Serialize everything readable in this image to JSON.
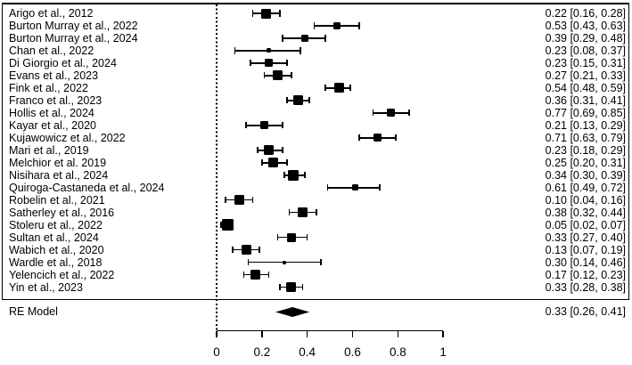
{
  "colors": {
    "ink": "#000000",
    "background": "#ffffff"
  },
  "chart_data": {
    "type": "forest",
    "title": "",
    "xlabel": "",
    "x_axis": {
      "min": 0,
      "max": 1,
      "ticks": [
        0,
        0.2,
        0.4,
        0.6,
        0.8,
        1
      ],
      "tick_labels": [
        "0",
        "0.2",
        "0.4",
        "0.6",
        "0.8",
        "1"
      ]
    },
    "reference_line": 0,
    "studies": [
      {
        "label": "Arigo et al., 2012",
        "estimate": 0.22,
        "ci_lower": 0.16,
        "ci_upper": 0.28,
        "value_text": "0.22 [0.16, 0.28]"
      },
      {
        "label": "Burton Murray et al., 2022",
        "estimate": 0.53,
        "ci_lower": 0.43,
        "ci_upper": 0.63,
        "value_text": "0.53 [0.43, 0.63]"
      },
      {
        "label": "Burton Murray et al., 2024",
        "estimate": 0.39,
        "ci_lower": 0.29,
        "ci_upper": 0.48,
        "value_text": "0.39 [0.29, 0.48]"
      },
      {
        "label": "Chan et al., 2022",
        "estimate": 0.23,
        "ci_lower": 0.08,
        "ci_upper": 0.37,
        "value_text": "0.23 [0.08, 0.37]"
      },
      {
        "label": "Di Giorgio et al., 2024",
        "estimate": 0.23,
        "ci_lower": 0.15,
        "ci_upper": 0.31,
        "value_text": "0.23 [0.15, 0.31]"
      },
      {
        "label": "Evans et al., 2023",
        "estimate": 0.27,
        "ci_lower": 0.21,
        "ci_upper": 0.33,
        "value_text": "0.27 [0.21, 0.33]"
      },
      {
        "label": "Fink et al., 2022",
        "estimate": 0.54,
        "ci_lower": 0.48,
        "ci_upper": 0.59,
        "value_text": "0.54 [0.48, 0.59]"
      },
      {
        "label": "Franco et al., 2023",
        "estimate": 0.36,
        "ci_lower": 0.31,
        "ci_upper": 0.41,
        "value_text": "0.36 [0.31, 0.41]"
      },
      {
        "label": "Hollis et al., 2024",
        "estimate": 0.77,
        "ci_lower": 0.69,
        "ci_upper": 0.85,
        "value_text": "0.77 [0.69, 0.85]"
      },
      {
        "label": "Kayar et al., 2020",
        "estimate": 0.21,
        "ci_lower": 0.13,
        "ci_upper": 0.29,
        "value_text": "0.21 [0.13, 0.29]"
      },
      {
        "label": "Kujawowicz et al., 2022",
        "estimate": 0.71,
        "ci_lower": 0.63,
        "ci_upper": 0.79,
        "value_text": "0.71 [0.63, 0.79]"
      },
      {
        "label": "Mari et al., 2019",
        "estimate": 0.23,
        "ci_lower": 0.18,
        "ci_upper": 0.29,
        "value_text": "0.23 [0.18, 0.29]"
      },
      {
        "label": "Melchior et al. 2019",
        "estimate": 0.25,
        "ci_lower": 0.2,
        "ci_upper": 0.31,
        "value_text": "0.25 [0.20, 0.31]"
      },
      {
        "label": "Nisihara et al., 2024",
        "estimate": 0.34,
        "ci_lower": 0.3,
        "ci_upper": 0.39,
        "value_text": "0.34 [0.30, 0.39]"
      },
      {
        "label": "Quiroga-Castaneda et al., 2024",
        "estimate": 0.61,
        "ci_lower": 0.49,
        "ci_upper": 0.72,
        "value_text": "0.61 [0.49, 0.72]"
      },
      {
        "label": "Robelin et al., 2021",
        "estimate": 0.1,
        "ci_lower": 0.04,
        "ci_upper": 0.16,
        "value_text": "0.10 [0.04, 0.16]"
      },
      {
        "label": "Satherley et al., 2016",
        "estimate": 0.38,
        "ci_lower": 0.32,
        "ci_upper": 0.44,
        "value_text": "0.38 [0.32, 0.44]"
      },
      {
        "label": "Stoleru et al., 2022",
        "estimate": 0.05,
        "ci_lower": 0.02,
        "ci_upper": 0.07,
        "value_text": "0.05 [0.02, 0.07]"
      },
      {
        "label": "Sultan et al., 2024",
        "estimate": 0.33,
        "ci_lower": 0.27,
        "ci_upper": 0.4,
        "value_text": "0.33 [0.27, 0.40]"
      },
      {
        "label": "Wabich et al., 2020",
        "estimate": 0.13,
        "ci_lower": 0.07,
        "ci_upper": 0.19,
        "value_text": "0.13 [0.07, 0.19]"
      },
      {
        "label": "Wardle et al., 2018",
        "estimate": 0.3,
        "ci_lower": 0.14,
        "ci_upper": 0.46,
        "value_text": "0.30 [0.14, 0.46]"
      },
      {
        "label": "Yelencich et al., 2022",
        "estimate": 0.17,
        "ci_lower": 0.12,
        "ci_upper": 0.23,
        "value_text": "0.17 [0.12, 0.23]"
      },
      {
        "label": "Yin et al., 2023",
        "estimate": 0.33,
        "ci_lower": 0.28,
        "ci_upper": 0.38,
        "value_text": "0.33 [0.28, 0.38]"
      }
    ],
    "summary": {
      "label": "RE Model",
      "estimate": 0.33,
      "ci_lower": 0.26,
      "ci_upper": 0.41,
      "value_text": "0.33 [0.26, 0.41]"
    }
  }
}
